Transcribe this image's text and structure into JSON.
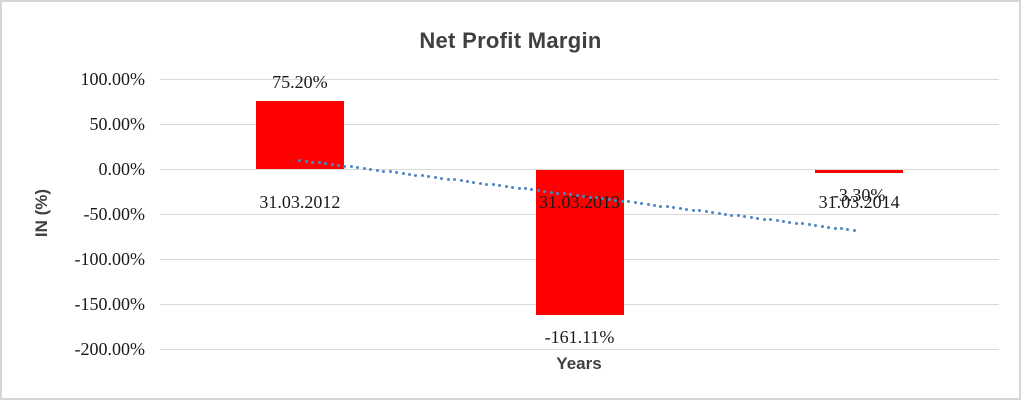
{
  "chart_data": {
    "type": "bar",
    "title": "Net Profit Margin",
    "xlabel": "Years",
    "ylabel": "IN (%)",
    "categories": [
      "31.03.2012",
      "31.03.2013",
      "31.03.2014"
    ],
    "values": [
      75.2,
      -161.11,
      -3.3
    ],
    "value_labels": [
      "75.20%",
      "-161.11%",
      "-3.30%"
    ],
    "value_unit": "percent",
    "y_ticks": {
      "values": [
        100,
        50,
        0,
        -50,
        -100,
        -150,
        -200
      ],
      "labels": [
        "100.00%",
        "50.00%",
        "0.00%",
        "-50.00%",
        "-100.00%",
        "-150.00%",
        "-200.00%"
      ]
    },
    "ylim": [
      -200,
      100
    ],
    "grid": true,
    "legend": false,
    "bar_color": "#ff0000",
    "trendline": {
      "type": "linear",
      "style": "dotted",
      "color": "#4e86c6"
    },
    "gridline_color": "#d9d9d9"
  }
}
